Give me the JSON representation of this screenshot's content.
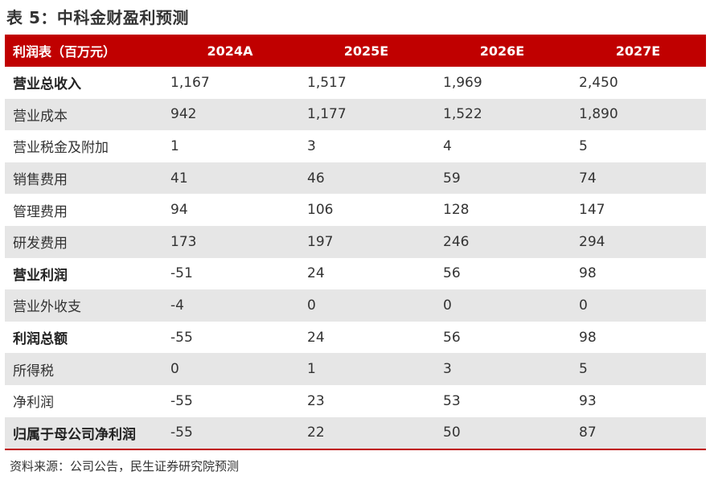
{
  "title": "表 5：中科金财盈利预测",
  "table": {
    "header": {
      "label": "利润表（百万元）",
      "years": [
        "2024A",
        "2025E",
        "2026E",
        "2027E"
      ]
    },
    "rows": [
      {
        "label": "营业总收入",
        "bold": true,
        "values": [
          "1,167",
          "1,517",
          "1,969",
          "2,450"
        ]
      },
      {
        "label": "营业成本",
        "bold": false,
        "values": [
          "942",
          "1,177",
          "1,522",
          "1,890"
        ]
      },
      {
        "label": "营业税金及附加",
        "bold": false,
        "values": [
          "1",
          "3",
          "4",
          "5"
        ]
      },
      {
        "label": "销售费用",
        "bold": false,
        "values": [
          "41",
          "46",
          "59",
          "74"
        ]
      },
      {
        "label": "管理费用",
        "bold": false,
        "values": [
          "94",
          "106",
          "128",
          "147"
        ]
      },
      {
        "label": "研发费用",
        "bold": false,
        "values": [
          "173",
          "197",
          "246",
          "294"
        ]
      },
      {
        "label": "营业利润",
        "bold": true,
        "values": [
          "-51",
          "24",
          "56",
          "98"
        ]
      },
      {
        "label": "营业外收支",
        "bold": false,
        "values": [
          "-4",
          "0",
          "0",
          "0"
        ]
      },
      {
        "label": "利润总额",
        "bold": true,
        "values": [
          "-55",
          "24",
          "56",
          "98"
        ]
      },
      {
        "label": "所得税",
        "bold": false,
        "values": [
          "0",
          "1",
          "3",
          "5"
        ]
      },
      {
        "label": "净利润",
        "bold": false,
        "values": [
          "-55",
          "23",
          "53",
          "93"
        ]
      },
      {
        "label": "归属于母公司净利润",
        "bold": true,
        "values": [
          "-55",
          "22",
          "50",
          "87"
        ]
      }
    ]
  },
  "source": "资料来源：公司公告，民生证券研究院预测",
  "colors": {
    "header_bg": "#c00000",
    "stripe_bg": "#e6e6e6"
  }
}
